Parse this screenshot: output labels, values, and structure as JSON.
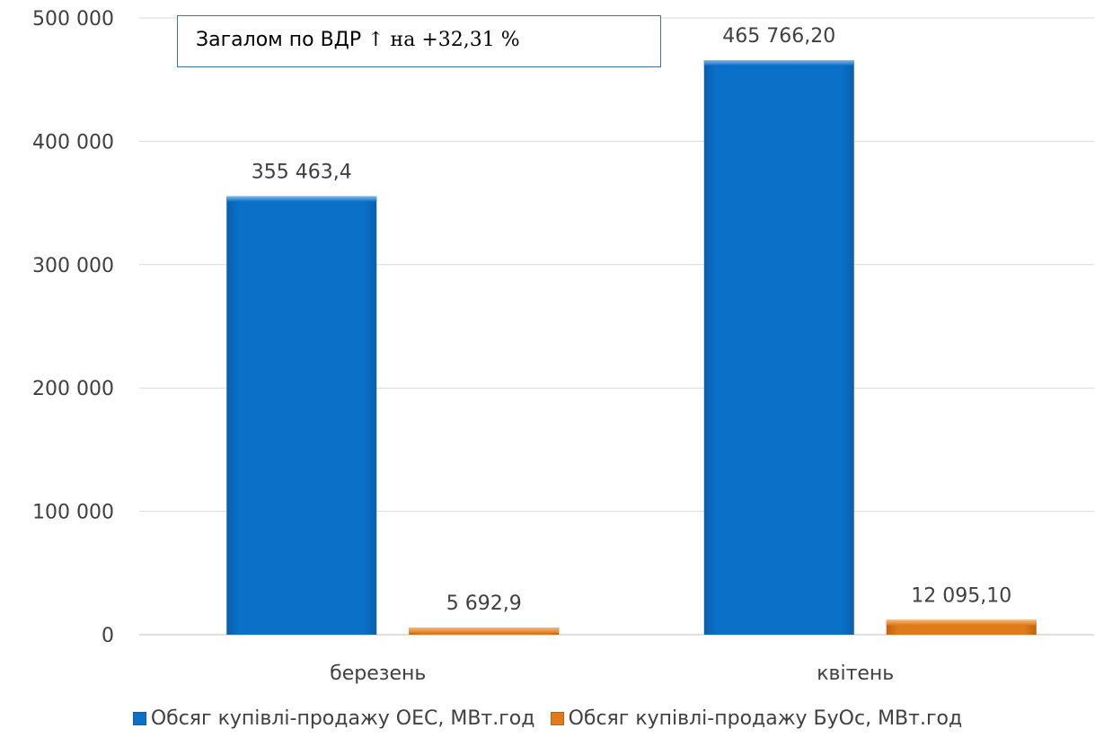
{
  "note": {
    "prefix": "Загалом по ВДР ",
    "suffix": "↑ на +32,31 %"
  },
  "chart_data": {
    "type": "bar",
    "categories": [
      "березень",
      "квітень"
    ],
    "series": [
      {
        "name": "Обсяг купівлі-продажу ОЕС, МВт.год",
        "values": [
          355463.4,
          465766.2
        ],
        "labels": [
          "355 463,4",
          "465 766,20"
        ],
        "color": "#0A70C8"
      },
      {
        "name": "Обсяг купівлі-продажу БуОс, МВт.год",
        "values": [
          5692.9,
          12095.1
        ],
        "labels": [
          "5 692,9",
          "12 095,10"
        ],
        "color": "#E07B1A"
      }
    ],
    "y_ticks": [
      "0",
      "100 000",
      "200 000",
      "300 000",
      "400 000",
      "500 000"
    ],
    "ylim": [
      0,
      500000
    ],
    "grid": true,
    "legend_position": "bottom"
  }
}
